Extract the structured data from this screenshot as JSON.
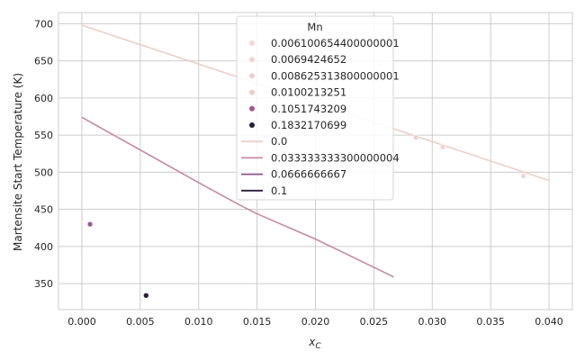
{
  "chart_data": {
    "type": "scatter",
    "xlabel_base": "x",
    "xlabel_sub": "C",
    "ylabel": "Martensite Start Temperature (K)",
    "xlim": [
      -0.002,
      0.042
    ],
    "ylim": [
      315,
      715
    ],
    "xticks": [
      0.0,
      0.005,
      0.01,
      0.015,
      0.02,
      0.025,
      0.03,
      0.035,
      0.04
    ],
    "xtick_labels": [
      "0.000",
      "0.005",
      "0.010",
      "0.015",
      "0.020",
      "0.025",
      "0.030",
      "0.035",
      "0.040"
    ],
    "yticks": [
      350,
      400,
      450,
      500,
      550,
      600,
      650,
      700
    ],
    "ytick_labels": [
      "350",
      "400",
      "450",
      "500",
      "550",
      "600",
      "650",
      "700"
    ],
    "grid": true,
    "legend": {
      "title": "Mn",
      "placement": "top-center",
      "scatter_entries": [
        {
          "label": "0.006100654400000001",
          "color": "#f3d7d5"
        },
        {
          "label": "0.0069424652",
          "color": "#f2d5d2"
        },
        {
          "label": "0.008625313800000001",
          "color": "#f0d0cd"
        },
        {
          "label": "0.0100213251",
          "color": "#eecbc8"
        },
        {
          "label": "0.1051743209",
          "color": "#9e5a8f"
        },
        {
          "label": "0.1832170699",
          "color": "#2b1d3c"
        }
      ],
      "line_entries": [
        {
          "label": "0.0",
          "color": "#ebd0cc"
        },
        {
          "label": "0.033333333300000004",
          "color": "#c48ba4"
        },
        {
          "label": "0.0666666667",
          "color": "#8a5588"
        },
        {
          "label": "0.1",
          "color": "#2d1e3e"
        }
      ]
    },
    "points": [
      {
        "x": 0.0286,
        "y": 547,
        "color": "#f0d0cd"
      },
      {
        "x": 0.0309,
        "y": 534,
        "color": "#f2d5d2"
      },
      {
        "x": 0.0378,
        "y": 495,
        "color": "#f3d7d5"
      },
      {
        "x": 0.0007,
        "y": 430,
        "color": "#9e5a8f"
      },
      {
        "x": 0.0055,
        "y": 334,
        "color": "#2b1d3c"
      }
    ],
    "lines": [
      {
        "color": "#ebd0cc",
        "x": [
          0.0,
          0.04
        ],
        "y": [
          698,
          489
        ]
      },
      {
        "color": "#c48ba4",
        "x": [
          0.0,
          0.005,
          0.01,
          0.0135,
          0.015,
          0.02,
          0.0267
        ],
        "y": [
          574,
          530,
          486,
          456,
          444,
          410,
          359
        ]
      }
    ]
  }
}
